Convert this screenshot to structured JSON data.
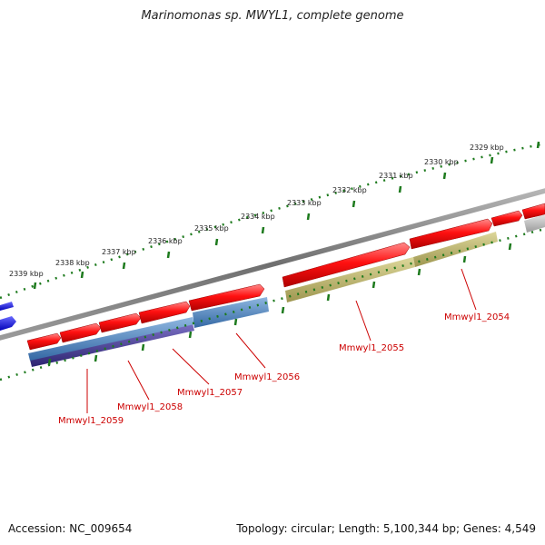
{
  "title": "Marinomonas sp. MWYL1, complete genome",
  "footer": {
    "accession": "Accession: NC_009654",
    "summary": "Topology: circular; Length: 5,100,344 bp; Genes: 4,549"
  },
  "scale_labels": [
    "2339 kbp",
    "2338 kbp",
    "2337 kbp",
    "2336 kbp",
    "2335 kbp",
    "2334 kbp",
    "2333 kbp",
    "2332 kbp",
    "2331 kbp",
    "2330 kbp",
    "2329 kbp"
  ],
  "gene_labels": [
    "Mmwyl1_2059",
    "Mmwyl1_2058",
    "Mmwyl1_2057",
    "Mmwyl1_2056",
    "Mmwyl1_2055",
    "Mmwyl1_2054"
  ],
  "colors": {
    "gene_arrow": "#ee1111",
    "feature_blue": "#4a7db8",
    "feature_purple": "#4a3f8c",
    "feature_olive": "#bdb56a",
    "feature_gray": "#bbbbbb",
    "feature_dark_blue": "#1010ee",
    "scale_tick": "#1d7a1d",
    "backbone": "#808080",
    "label_text": "#cc0000"
  }
}
